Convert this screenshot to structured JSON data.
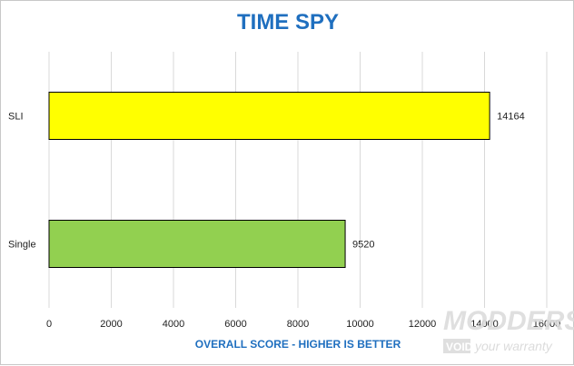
{
  "chart_data": {
    "type": "bar",
    "orientation": "horizontal",
    "title": "TIME SPY",
    "xlabel": "OVERALL SCORE - HIGHER IS BETTER",
    "categories": [
      "SLI",
      "Single"
    ],
    "values": [
      14164,
      9520
    ],
    "bar_colors": [
      "#ffff00",
      "#92d050"
    ],
    "xlim": [
      0,
      16000
    ],
    "xticks": [
      "0",
      "2000",
      "4000",
      "6000",
      "8000",
      "10000",
      "12000",
      "14000",
      "16000"
    ],
    "data_labels": [
      "14164",
      "9520"
    ],
    "grid": true
  },
  "watermark": {
    "main": "MODDERS",
    "sub_left": "VOID",
    "sub_right": "your warranty"
  }
}
